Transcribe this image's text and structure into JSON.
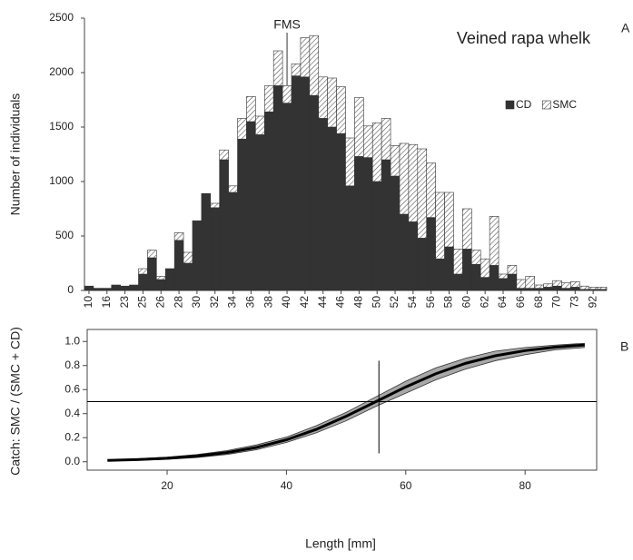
{
  "chart_data": [
    {
      "type": "stacked-bar",
      "title": "Veined rapa whelk",
      "panel_label": "A",
      "y_label": "Number of individuals",
      "categories": [
        "10",
        null,
        "16",
        null,
        "23",
        null,
        "25",
        null,
        "26",
        null,
        "28",
        null,
        "30",
        null,
        "32",
        null,
        "34",
        null,
        "36",
        null,
        "38",
        null,
        "40",
        null,
        "42",
        null,
        "44",
        null,
        "46",
        null,
        "48",
        null,
        "50",
        null,
        "52",
        null,
        "54",
        null,
        "56",
        null,
        "58",
        null,
        "60",
        null,
        "62",
        null,
        "64",
        null,
        "66",
        null,
        "68",
        null,
        "70",
        null,
        "73",
        null,
        "92",
        null
      ],
      "series": [
        {
          "name": "CD",
          "color": "#333333",
          "values": [
            40,
            20,
            20,
            50,
            40,
            50,
            150,
            300,
            100,
            200,
            460,
            250,
            640,
            890,
            760,
            1200,
            900,
            1390,
            1550,
            1430,
            1640,
            1880,
            1720,
            1970,
            1960,
            1790,
            1580,
            1500,
            1440,
            960,
            1230,
            1220,
            1000,
            1200,
            1050,
            700,
            630,
            480,
            670,
            290,
            400,
            150,
            380,
            240,
            120,
            230,
            110,
            150,
            20,
            20,
            20,
            30,
            40,
            20,
            30,
            10,
            10,
            10
          ]
        },
        {
          "name": "SMC",
          "color": "#ffffff",
          "pattern": "hatch",
          "values": [
            0,
            0,
            0,
            0,
            0,
            0,
            50,
            70,
            30,
            0,
            70,
            100,
            0,
            0,
            40,
            90,
            60,
            190,
            230,
            170,
            240,
            320,
            160,
            110,
            360,
            550,
            380,
            450,
            430,
            440,
            540,
            290,
            540,
            380,
            280,
            650,
            710,
            820,
            500,
            610,
            500,
            230,
            370,
            130,
            170,
            450,
            40,
            80,
            80,
            110,
            30,
            30,
            50,
            50,
            50,
            30,
            20,
            20
          ]
        }
      ],
      "annotation": {
        "text": "FMS",
        "x": "40"
      },
      "ylim": [
        0,
        2500
      ],
      "yticks": [
        0,
        500,
        1000,
        1500,
        2000,
        2500
      ],
      "legend": "right"
    },
    {
      "type": "line",
      "panel_label": "B",
      "y_label": "Catch:  SMC / (SMC + CD)",
      "x_label": "Length [mm]",
      "x": [
        10,
        15,
        20,
        25,
        30,
        35,
        40,
        45,
        50,
        55,
        60,
        65,
        70,
        75,
        80,
        85,
        90
      ],
      "series": [
        {
          "values": [
            0.011,
            0.018,
            0.029,
            0.047,
            0.076,
            0.119,
            0.182,
            0.269,
            0.378,
            0.5,
            0.622,
            0.731,
            0.818,
            0.881,
            0.924,
            0.953,
            0.971
          ],
          "color": "#000000",
          "lower": [
            0.006,
            0.012,
            0.02,
            0.035,
            0.06,
            0.1,
            0.16,
            0.24,
            0.34,
            0.46,
            0.57,
            0.68,
            0.77,
            0.84,
            0.89,
            0.93,
            0.95
          ],
          "upper": [
            0.016,
            0.025,
            0.038,
            0.06,
            0.092,
            0.14,
            0.205,
            0.3,
            0.41,
            0.54,
            0.67,
            0.78,
            0.86,
            0.92,
            0.95,
            0.97,
            0.985
          ],
          "band_color": "#a8a8a8"
        }
      ],
      "hline": 0.5,
      "vline": {
        "x": 55.5,
        "y": [
          0.07,
          0.84
        ]
      },
      "xlim": [
        6.6,
        92
      ],
      "ylim": [
        -0.07,
        1.1
      ],
      "xticks": [
        20,
        40,
        60,
        80
      ],
      "yticks": [
        {
          "value": 0,
          "label": "0.0"
        },
        0.2,
        0.4,
        0.6,
        0.8,
        {
          "value": 1,
          "label": "1.0"
        }
      ]
    }
  ]
}
